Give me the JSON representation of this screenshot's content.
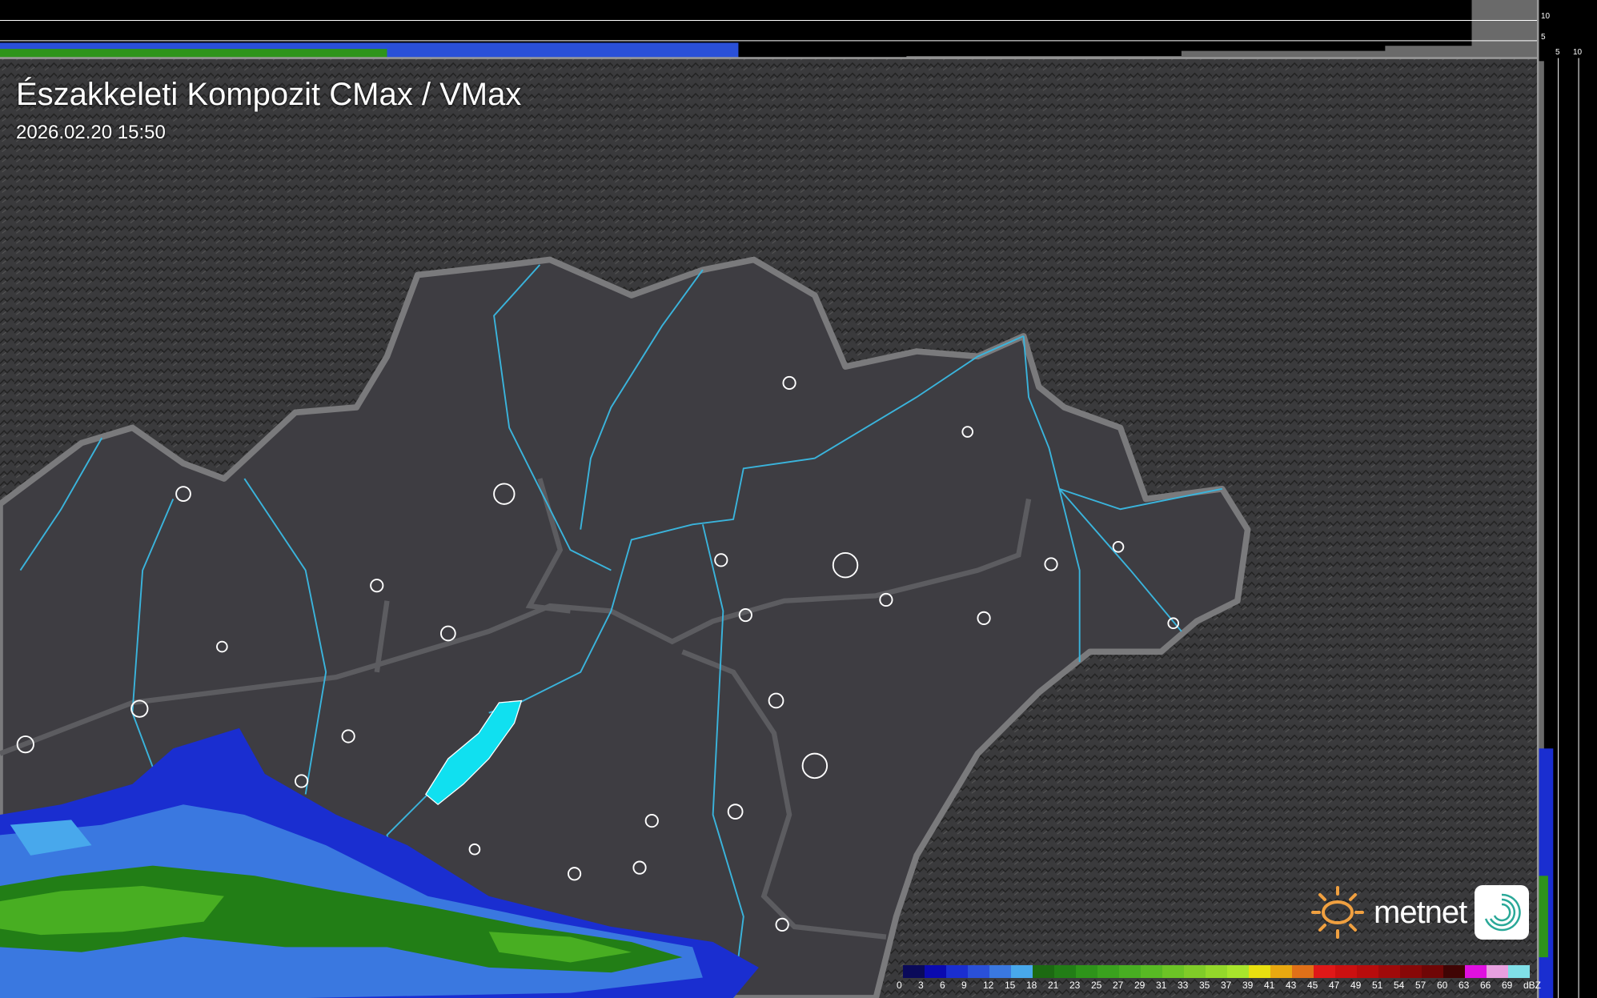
{
  "header": {
    "title": "Északkeleti Kompozit CMax / VMax",
    "timestamp": "2026.02.20 15:50"
  },
  "side_profiles": {
    "top_axis_labels": [
      "10",
      "5"
    ],
    "right_axis_labels": [
      "5",
      "10"
    ]
  },
  "legend": {
    "unit": "dBZ",
    "labels": [
      "0",
      "3",
      "6",
      "9",
      "12",
      "15",
      "18",
      "21",
      "23",
      "25",
      "27",
      "29",
      "31",
      "33",
      "35",
      "37",
      "39",
      "41",
      "43",
      "45",
      "47",
      "49",
      "51",
      "54",
      "57",
      "60",
      "63",
      "66",
      "69"
    ],
    "colors": [
      "#0a0a5a",
      "#0a0ab0",
      "#1a2ed0",
      "#2a50d8",
      "#3a78e0",
      "#48a8ec",
      "#1c6a12",
      "#227e16",
      "#2e941a",
      "#3aa21e",
      "#48ae22",
      "#58ba24",
      "#6cc426",
      "#80cc28",
      "#94d82a",
      "#a8e42c",
      "#e8e010",
      "#e8a810",
      "#e07018",
      "#e01818",
      "#cc1010",
      "#b80c0c",
      "#a00a0a",
      "#880808",
      "#700606",
      "#400404",
      "#e010e0",
      "#e8a0e0",
      "#80e0e8"
    ]
  },
  "logo": {
    "brand": "metnet",
    "sun_color": "#f0a040",
    "icon": "swirl-icon"
  }
}
